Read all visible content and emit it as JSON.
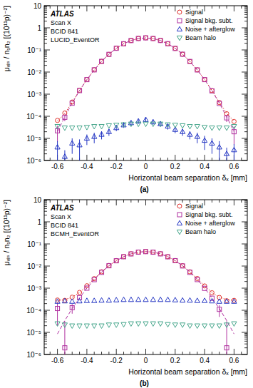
{
  "chart_data": [
    {
      "type": "scatter",
      "annotations": [
        "ATLAS",
        "Scan X",
        "BCID 841",
        "LUCID_EventOR"
      ],
      "caption": "(a)",
      "x_label": "Horizontal beam separation δₓ [mm]",
      "y_label": "μᵥᵢₛ / n₁n₂ [(10¹¹p)⁻²]",
      "log": "y",
      "legend": "top-right",
      "xlim": [
        -0.69,
        0.69
      ],
      "xticks": [
        -0.6,
        -0.4,
        -0.2,
        0,
        0.2,
        0.4,
        0.6
      ],
      "ylim": [
        1e-06,
        10
      ],
      "yticks": [
        {
          "value": 1e-06,
          "label": "10⁻⁶"
        },
        {
          "value": 1e-05,
          "label": "10⁻⁵"
        },
        {
          "value": 0.0001,
          "label": "10⁻⁴"
        },
        {
          "value": 0.001,
          "label": "10⁻³"
        },
        {
          "value": 0.01,
          "label": "10⁻²"
        },
        {
          "value": 0.1,
          "label": "10⁻¹"
        },
        1,
        10
      ],
      "x": [
        -0.6,
        -0.55,
        -0.5,
        -0.45,
        -0.4,
        -0.35,
        -0.3,
        -0.25,
        -0.2,
        -0.15,
        -0.1,
        -0.05,
        0,
        0.05,
        0.1,
        0.15,
        0.2,
        0.25,
        0.3,
        0.35,
        0.4,
        0.45,
        0.5,
        0.55,
        0.6
      ],
      "series": [
        {
          "type": "line",
          "line_style": "dotted",
          "color": "#e0312c",
          "values": [
            6e-05,
            0.000134,
            0.00043,
            0.00147,
            0.00457,
            0.0125,
            0.0303,
            0.064,
            0.118,
            0.19,
            0.267,
            0.327,
            0.35,
            0.327,
            0.267,
            0.19,
            0.118,
            0.064,
            0.0303,
            0.0125,
            0.00457,
            0.00147,
            0.00043,
            0.000134,
            6e-05
          ]
        },
        {
          "type": "line",
          "line_style": "dashed",
          "color": "#b0309f",
          "values": [
            2e-05,
            9.4e-05,
            0.00039,
            0.00143,
            0.00453,
            0.0125,
            0.0303,
            0.064,
            0.118,
            0.19,
            0.267,
            0.327,
            0.35,
            0.327,
            0.267,
            0.19,
            0.118,
            0.064,
            0.0303,
            0.0125,
            0.00453,
            0.00143,
            0.00039,
            9.4e-05,
            2e-05
          ]
        },
        {
          "name": "Signal",
          "type": "scatter",
          "marker": "circle",
          "color": "#e0312c",
          "values": [
            6.5e-05,
            0.00014,
            0.00044,
            0.0015,
            0.0046,
            0.0127,
            0.0305,
            0.063,
            0.119,
            0.19,
            0.266,
            0.33,
            0.352,
            0.328,
            0.268,
            0.191,
            0.117,
            0.064,
            0.0301,
            0.0126,
            0.0046,
            0.00145,
            0.00042,
            0.00013,
            5.8e-05
          ]
        },
        {
          "name": "Signal bkg. subt.",
          "type": "scatter",
          "marker": "square",
          "color": "#b0309f",
          "values": [
            2.2e-05,
            9e-05,
            0.00039,
            0.00145,
            0.00455,
            0.0126,
            0.0303,
            0.063,
            0.119,
            0.19,
            0.266,
            0.33,
            0.352,
            0.328,
            0.268,
            0.191,
            0.117,
            0.064,
            0.03,
            0.0125,
            0.00455,
            0.0014,
            0.00038,
            8.5e-05,
            2e-05
          ],
          "errors": [
            1.5e-05,
            3e-05,
            null,
            null,
            null,
            null,
            null,
            null,
            null,
            null,
            null,
            null,
            null,
            null,
            null,
            null,
            null,
            null,
            null,
            null,
            null,
            null,
            null,
            3e-05,
            1.5e-05
          ]
        },
        {
          "name": "Noise + afterglow",
          "type": "scatter",
          "marker": "triangle-up",
          "color": "#2537c4",
          "values": [
            4e-06,
            1.5e-06,
            6e-06,
            5e-06,
            1e-05,
            1.2e-05,
            1.5e-05,
            2e-05,
            3e-05,
            4e-05,
            5e-05,
            6e-05,
            7e-05,
            5.5e-05,
            4.5e-05,
            3.5e-05,
            2.5e-05,
            2e-05,
            1.5e-05,
            1.2e-05,
            8e-06,
            6e-06,
            4e-06,
            2e-06,
            3e-06
          ],
          "errors": [
            3.5e-06,
            1.4e-06,
            4e-06,
            4e-06,
            5e-06,
            6e-06,
            6e-06,
            7e-06,
            9e-06,
            1e-05,
            1.2e-05,
            1.4e-05,
            1.5e-05,
            1.3e-05,
            1.1e-05,
            1e-05,
            8e-06,
            7e-06,
            6e-06,
            6e-06,
            5e-06,
            4e-06,
            3.5e-06,
            1.8e-06,
            2.5e-06
          ]
        },
        {
          "name": "Beam halo",
          "type": "scatter",
          "marker": "triangle-down",
          "color": "#44a58a",
          "values": [
            3.5e-05,
            3e-05,
            3e-05,
            3e-05,
            3.2e-05,
            3.5e-05,
            3.5e-05,
            3.8e-05,
            4e-05,
            4.2e-05,
            4.5e-05,
            4.5e-05,
            4.5e-05,
            4.5e-05,
            4.5e-05,
            4.2e-05,
            4e-05,
            3.8e-05,
            3.5e-05,
            3.5e-05,
            3.2e-05,
            3e-05,
            3e-05,
            3e-05,
            3.5e-05
          ]
        }
      ]
    },
    {
      "type": "scatter",
      "annotations": [
        "ATLAS",
        "Scan X",
        "BCID 841",
        "BCMH_EventOR"
      ],
      "caption": "(b)",
      "x_label": "Horizontal beam separation δₓ [mm]",
      "y_label": "μᵥᵢₛ / n₁n₂ [(10¹¹p)⁻²]",
      "log": "y",
      "legend": "top-right",
      "xlim": [
        -0.69,
        0.69
      ],
      "xticks": [
        -0.6,
        -0.4,
        -0.2,
        0,
        0.2,
        0.4,
        0.6
      ],
      "ylim": [
        1e-06,
        10
      ],
      "yticks": [
        {
          "value": 1e-06,
          "label": "10⁻⁶"
        },
        {
          "value": 1e-05,
          "label": "10⁻⁵"
        },
        {
          "value": 0.0001,
          "label": "10⁻⁴"
        },
        {
          "value": 0.001,
          "label": "10⁻³"
        },
        {
          "value": 0.01,
          "label": "10⁻²"
        },
        {
          "value": 0.1,
          "label": "10⁻¹"
        },
        1,
        10
      ],
      "x": [
        -0.6,
        -0.55,
        -0.5,
        -0.45,
        -0.4,
        -0.35,
        -0.3,
        -0.25,
        -0.2,
        -0.15,
        -0.1,
        -0.05,
        0,
        0.05,
        0.1,
        0.15,
        0.2,
        0.25,
        0.3,
        0.35,
        0.4,
        0.45,
        0.5,
        0.55,
        0.6
      ],
      "series": [
        {
          "type": "line",
          "line_style": "dotted",
          "color": "#e0312c",
          "values": [
            0.000278,
            0.000304,
            0.00039,
            0.00063,
            0.00127,
            0.00271,
            0.00554,
            0.0105,
            0.0177,
            0.0266,
            0.0358,
            0.0427,
            0.0453,
            0.0427,
            0.0358,
            0.0266,
            0.0177,
            0.0105,
            0.00554,
            0.00271,
            0.00127,
            0.00063,
            0.00039,
            0.000304,
            0.000278
          ]
        },
        {
          "type": "line",
          "line_style": "dashed",
          "color": "#b0309f",
          "values": [
            8.5e-06,
            3.4e-05,
            0.00012,
            0.00036,
            0.001,
            0.00244,
            0.00527,
            0.0102,
            0.0174,
            0.0263,
            0.0355,
            0.0424,
            0.045,
            0.0424,
            0.0355,
            0.0263,
            0.0174,
            0.0102,
            0.00527,
            0.00244,
            0.001,
            0.00036,
            0.00012,
            3.4e-05,
            8.5e-06
          ]
        },
        {
          "name": "Signal",
          "type": "scatter",
          "marker": "circle",
          "color": "#e0312c",
          "values": [
            0.00029,
            0.00028,
            0.00039,
            0.00064,
            0.00128,
            0.0027,
            0.0055,
            0.0106,
            0.0176,
            0.0267,
            0.0357,
            0.0428,
            0.0452,
            0.0427,
            0.0359,
            0.0265,
            0.0178,
            0.0104,
            0.0055,
            0.00272,
            0.00126,
            0.00062,
            0.00038,
            0.00027,
            0.00028
          ]
        },
        {
          "name": "Signal bkg. subt.",
          "type": "scatter",
          "marker": "square",
          "color": "#b0309f",
          "values": [
            0.00012,
            2e-06,
            0.00013,
            0.00037,
            0.001,
            0.00243,
            0.0052,
            0.0103,
            0.0173,
            0.0264,
            0.0354,
            0.0425,
            0.0449,
            0.0424,
            0.0356,
            0.0262,
            0.0175,
            0.0101,
            0.0052,
            0.00245,
            0.00098,
            0.00035,
            0.00011,
            2e-06,
            null
          ],
          "errors": [
            0.0001,
            3e-05,
            6e-05,
            null,
            null,
            null,
            null,
            null,
            null,
            null,
            null,
            null,
            null,
            null,
            null,
            null,
            null,
            null,
            null,
            null,
            null,
            null,
            6e-05,
            3e-05,
            null
          ]
        },
        {
          "name": "Noise + afterglow",
          "type": "scatter",
          "marker": "triangle-up",
          "color": "#2537c4",
          "values": [
            0.00025,
            0.00026,
            0.00025,
            0.00026,
            0.00027,
            0.00027,
            0.00028,
            0.00028,
            0.00029,
            0.0003,
            0.0003,
            0.0003,
            0.0003,
            0.0003,
            0.0003,
            0.0003,
            0.00029,
            0.00028,
            0.00028,
            0.00027,
            0.00027,
            0.00026,
            0.00025,
            0.00025,
            0.00025
          ]
        },
        {
          "name": "Beam halo",
          "type": "scatter",
          "marker": "triangle-down",
          "color": "#44a58a",
          "values": [
            2.5e-05,
            2.2e-05,
            2e-05,
            2e-05,
            2e-05,
            2e-05,
            2e-05,
            2.2e-05,
            2.2e-05,
            2.3e-05,
            2.5e-05,
            2.5e-05,
            2.5e-05,
            2.5e-05,
            2.5e-05,
            2.3e-05,
            2.2e-05,
            2.2e-05,
            2e-05,
            2e-05,
            2e-05,
            2e-05,
            2e-05,
            2.2e-05,
            2.5e-05
          ]
        }
      ]
    }
  ]
}
